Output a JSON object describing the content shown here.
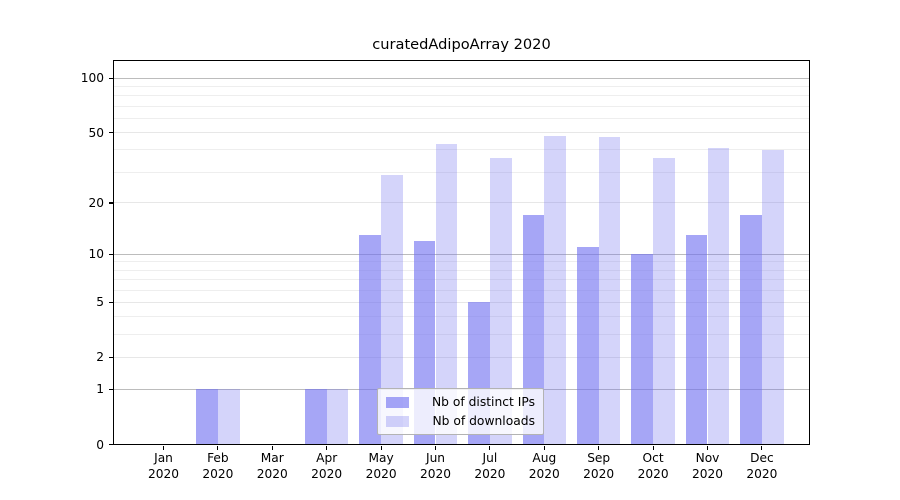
{
  "title": "curatedAdipoArray 2020",
  "chart_data": {
    "type": "bar",
    "title": "curatedAdipoArray 2020",
    "categories": [
      "Jan",
      "Feb",
      "Mar",
      "Apr",
      "May",
      "Jun",
      "Jul",
      "Aug",
      "Sep",
      "Oct",
      "Nov",
      "Dec"
    ],
    "category_year": "2020",
    "series": [
      {
        "name": "Nb of distinct IPs",
        "color": "rgba(111,111,240,0.62)",
        "values": [
          0,
          1,
          0,
          1,
          13,
          12,
          5,
          17,
          11,
          10,
          13,
          17
        ]
      },
      {
        "name": "Nb of downloads",
        "color": "rgba(111,111,240,0.30)",
        "values": [
          0,
          1,
          0,
          1,
          29,
          43,
          36,
          48,
          47,
          36,
          41,
          40
        ]
      }
    ],
    "y_axis": {
      "scale": "log1p",
      "ticks": [
        0,
        1,
        2,
        5,
        10,
        20,
        50,
        100
      ],
      "ylim": [
        0,
        127
      ]
    },
    "x_axis": {
      "label": "",
      "tick_label_format": "month newline year"
    },
    "gridlines": {
      "decade": [
        1,
        10,
        100
      ],
      "sub": [
        2,
        5,
        20,
        50
      ],
      "minor": [
        3,
        4,
        6,
        7,
        8,
        9,
        30,
        40,
        60,
        70,
        80,
        90
      ]
    },
    "legend": {
      "position": "lower center-left",
      "items": [
        "Nb of distinct IPs",
        "Nb of downloads"
      ]
    },
    "colors": {
      "bar_base": "#6f6ff0",
      "grid_decade": "#bcbcbc",
      "grid_sub": "#e7e7e7",
      "grid_minor": "#eeeeee",
      "axis": "#000000",
      "background": "#ffffff",
      "legend_border": "#b3b3b3"
    }
  }
}
